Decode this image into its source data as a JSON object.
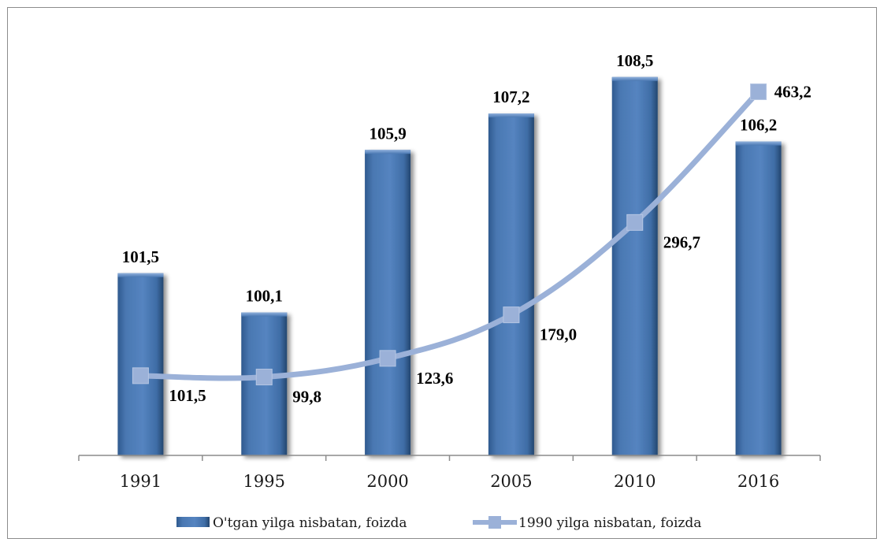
{
  "chart_data": {
    "type": "bar",
    "categories": [
      "1991",
      "1995",
      "2000",
      "2005",
      "2010",
      "2016"
    ],
    "series": [
      {
        "name": "O'tgan yilga nisbatan, foizda",
        "type": "bar",
        "values": [
          101.5,
          100.1,
          105.9,
          107.2,
          108.5,
          106.2
        ],
        "labels": [
          "101,5",
          "100,1",
          "105,9",
          "107,2",
          "108,5",
          "106,2"
        ],
        "color": "#4F81BD"
      },
      {
        "name": "1990 yilga nisbatan, foizda",
        "type": "line",
        "values": [
          101.5,
          99.8,
          123.6,
          179.0,
          296.7,
          463.2
        ],
        "labels": [
          "101,5",
          "99,8",
          "123,6",
          "179,0",
          "296,7",
          "463,2"
        ],
        "color": "#9BB1D8"
      }
    ],
    "title": "",
    "xlabel": "",
    "ylabel": "",
    "legend_position": "bottom",
    "grid": false
  }
}
